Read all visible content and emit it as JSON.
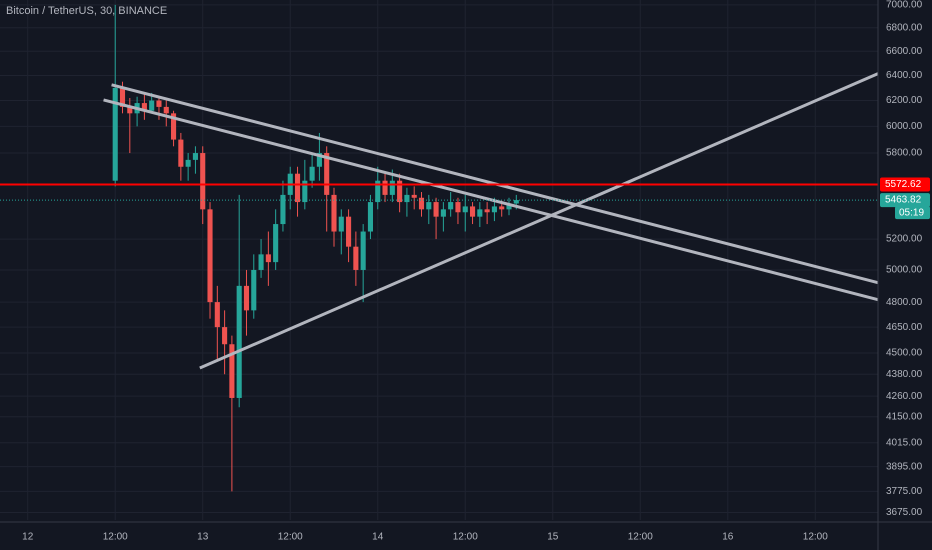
{
  "chart_data": {
    "type": "candlestick",
    "title": "Bitcoin / TetherUS, 30, BINANCE",
    "log_scale": true,
    "grid": true,
    "up_color": "#26a69a",
    "down_color": "#ef5350",
    "xlim": [
      -3.8,
      116.6
    ],
    "xticks": [
      {
        "value": 0,
        "label": "12"
      },
      {
        "value": 12,
        "label": "12:00"
      },
      {
        "value": 24,
        "label": "13"
      },
      {
        "value": 36,
        "label": "12:00"
      },
      {
        "value": 48,
        "label": "14"
      },
      {
        "value": 60,
        "label": "12:00"
      },
      {
        "value": 72,
        "label": "15"
      },
      {
        "value": 84,
        "label": "12:00"
      },
      {
        "value": 96,
        "label": "16"
      },
      {
        "value": 108,
        "label": "12:00"
      }
    ],
    "ylim": [
      3640,
      7044
    ],
    "yticks": [
      {
        "value": 7000,
        "label": "7000.00"
      },
      {
        "value": 6800,
        "label": "6800.00"
      },
      {
        "value": 6600,
        "label": "6600.00"
      },
      {
        "value": 6400,
        "label": "6400.00"
      },
      {
        "value": 6200,
        "label": "6200.00"
      },
      {
        "value": 6000,
        "label": "6000.00"
      },
      {
        "value": 5800,
        "label": "5800.00"
      },
      {
        "value": 5200,
        "label": "5200.00"
      },
      {
        "value": 5000,
        "label": "5000.00"
      },
      {
        "value": 4800,
        "label": "4800.00"
      },
      {
        "value": 4650,
        "label": "4650.00"
      },
      {
        "value": 4500,
        "label": "4500.00"
      },
      {
        "value": 4380,
        "label": "4380.00"
      },
      {
        "value": 4260,
        "label": "4260.00"
      },
      {
        "value": 4150,
        "label": "4150.00"
      },
      {
        "value": 4015,
        "label": "4015.00"
      },
      {
        "value": 3895,
        "label": "3895.00"
      },
      {
        "value": 3775,
        "label": "3775.00"
      },
      {
        "value": 3675,
        "label": "3675.00"
      }
    ],
    "candles": {
      "x": [
        12,
        13,
        14,
        15,
        16,
        17,
        18,
        19,
        20,
        21,
        22,
        23,
        24,
        25,
        26,
        27,
        28,
        29,
        30,
        31,
        32,
        33,
        34,
        35,
        36,
        37,
        38,
        39,
        40,
        41,
        42,
        43,
        44,
        45,
        46,
        47,
        48,
        49,
        50,
        51,
        52,
        53,
        54,
        55,
        56,
        57,
        58,
        59,
        60,
        61,
        62,
        63,
        64,
        65,
        66,
        67
      ],
      "ohlc": [
        [
          5600,
          7000,
          5560,
          6300
        ],
        [
          6300,
          6350,
          6100,
          6150
        ],
        [
          6150,
          6220,
          5800,
          6100
        ],
        [
          6100,
          6230,
          6000,
          6180
        ],
        [
          6180,
          6250,
          6050,
          6120
        ],
        [
          6120,
          6260,
          6100,
          6200
        ],
        [
          6200,
          6230,
          6050,
          6150
        ],
        [
          6150,
          6200,
          6000,
          6100
        ],
        [
          6100,
          6120,
          5850,
          5900
        ],
        [
          5900,
          5950,
          5600,
          5700
        ],
        [
          5700,
          5800,
          5600,
          5750
        ],
        [
          5750,
          5850,
          5650,
          5800
        ],
        [
          5800,
          5850,
          5300,
          5400
        ],
        [
          5400,
          5450,
          4700,
          4800
        ],
        [
          4800,
          4900,
          4450,
          4650
        ],
        [
          4650,
          4750,
          4380,
          4550
        ],
        [
          4550,
          4600,
          3775,
          4250
        ],
        [
          4250,
          5500,
          4200,
          4900
        ],
        [
          4900,
          5000,
          4600,
          4750
        ],
        [
          4750,
          5100,
          4700,
          5000
        ],
        [
          5000,
          5200,
          4950,
          5100
        ],
        [
          5100,
          5250,
          4900,
          5050
        ],
        [
          5050,
          5400,
          5000,
          5300
        ],
        [
          5300,
          5600,
          5250,
          5500
        ],
        [
          5500,
          5700,
          5400,
          5650
        ],
        [
          5650,
          5700,
          5350,
          5450
        ],
        [
          5450,
          5750,
          5400,
          5600
        ],
        [
          5600,
          5800,
          5550,
          5700
        ],
        [
          5700,
          5950,
          5600,
          5800
        ],
        [
          5800,
          5850,
          5250,
          5500
        ],
        [
          5500,
          5550,
          5150,
          5250
        ],
        [
          5250,
          5400,
          5100,
          5350
        ],
        [
          5350,
          5400,
          5050,
          5150
        ],
        [
          5150,
          5250,
          4900,
          5000
        ],
        [
          5000,
          5300,
          4800,
          5250
        ],
        [
          5250,
          5500,
          5200,
          5450
        ],
        [
          5450,
          5700,
          5400,
          5600
        ],
        [
          5600,
          5650,
          5450,
          5500
        ],
        [
          5500,
          5680,
          5450,
          5600
        ],
        [
          5600,
          5650,
          5380,
          5450
        ],
        [
          5450,
          5550,
          5350,
          5500
        ],
        [
          5500,
          5560,
          5400,
          5480
        ],
        [
          5480,
          5520,
          5350,
          5400
        ],
        [
          5400,
          5500,
          5300,
          5450
        ],
        [
          5450,
          5480,
          5200,
          5350
        ],
        [
          5350,
          5450,
          5250,
          5400
        ],
        [
          5400,
          5520,
          5350,
          5450
        ],
        [
          5450,
          5480,
          5300,
          5380
        ],
        [
          5380,
          5500,
          5250,
          5420
        ],
        [
          5420,
          5450,
          5300,
          5350
        ],
        [
          5350,
          5450,
          5280,
          5400
        ],
        [
          5400,
          5450,
          5300,
          5380
        ],
        [
          5380,
          5480,
          5320,
          5420
        ],
        [
          5420,
          5460,
          5350,
          5400
        ],
        [
          5400,
          5480,
          5360,
          5440
        ],
        [
          5440,
          5500,
          5400,
          5463.82
        ]
      ]
    },
    "trend_lines": [
      {
        "x": [
          11.5,
          116.6
        ],
        "y": [
          6325,
          4920
        ]
      },
      {
        "x": [
          10.4,
          116.6
        ],
        "y": [
          6205,
          4815
        ]
      },
      {
        "x": [
          23.6,
          116.6
        ],
        "y": [
          4415,
          6415
        ]
      }
    ],
    "trend_color": "#b2b5be",
    "price_lines": [
      {
        "value": 5572.62,
        "color": "#ff0000",
        "style": "solid"
      },
      {
        "value": 5463.82,
        "color": "#26a69a",
        "style": "dotted"
      }
    ],
    "countdown": "05:19"
  }
}
